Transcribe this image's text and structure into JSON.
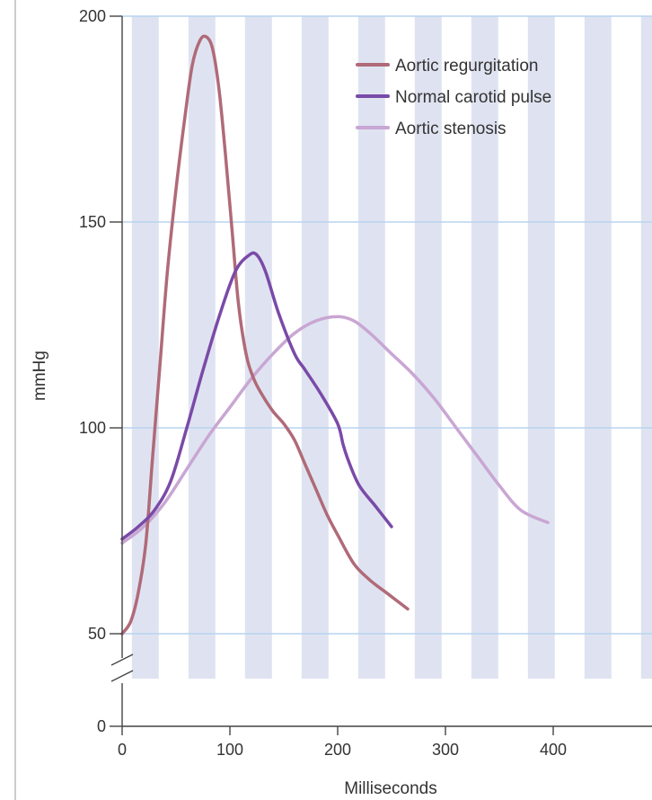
{
  "chart_data": {
    "type": "line",
    "title": "",
    "xlabel": "Milliseconds",
    "ylabel": "mmHg",
    "xlim": [
      0,
      500
    ],
    "ylim": [
      0,
      200
    ],
    "axis_break_between": [
      0,
      50
    ],
    "x_ticks": [
      0,
      100,
      200,
      300,
      400
    ],
    "y_ticks": [
      0,
      50,
      100,
      150,
      200
    ],
    "grid": true,
    "legend_position": "top-right",
    "series": [
      {
        "name": "Aortic regurgitation",
        "color": "#b06a78",
        "x": [
          0,
          8,
          15,
          22,
          28,
          35,
          42,
          50,
          58,
          65,
          72,
          78,
          84,
          90,
          96,
          102,
          108,
          115,
          122,
          130,
          140,
          150,
          160,
          170,
          180,
          190,
          200,
          215,
          230,
          245,
          265
        ],
        "y": [
          50,
          53,
          60,
          72,
          92,
          115,
          138,
          158,
          175,
          188,
          194,
          195,
          192,
          182,
          166,
          148,
          130,
          118,
          112,
          108,
          104,
          101,
          97,
          91,
          85,
          79,
          74,
          67,
          63,
          60,
          56
        ]
      },
      {
        "name": "Normal carotid pulse",
        "color": "#7a4aa8",
        "x": [
          0,
          15,
          30,
          45,
          60,
          75,
          90,
          105,
          118,
          125,
          133,
          145,
          160,
          170,
          185,
          200,
          205,
          210,
          220,
          235,
          250
        ],
        "y": [
          73,
          76,
          80,
          87,
          100,
          114,
          127,
          138,
          142,
          142,
          138,
          128,
          118,
          114,
          108,
          101,
          96,
          92,
          86,
          81,
          76
        ]
      },
      {
        "name": "Aortic stenosis",
        "color": "#c9a6d3",
        "x": [
          0,
          20,
          40,
          60,
          80,
          100,
          120,
          140,
          160,
          180,
          200,
          215,
          230,
          250,
          270,
          290,
          310,
          330,
          350,
          370,
          395
        ],
        "y": [
          72,
          76,
          82,
          90,
          98,
          105,
          112,
          118,
          123,
          126,
          127,
          126,
          123,
          118,
          113,
          107,
          100,
          93,
          86,
          80,
          77
        ]
      }
    ]
  }
}
